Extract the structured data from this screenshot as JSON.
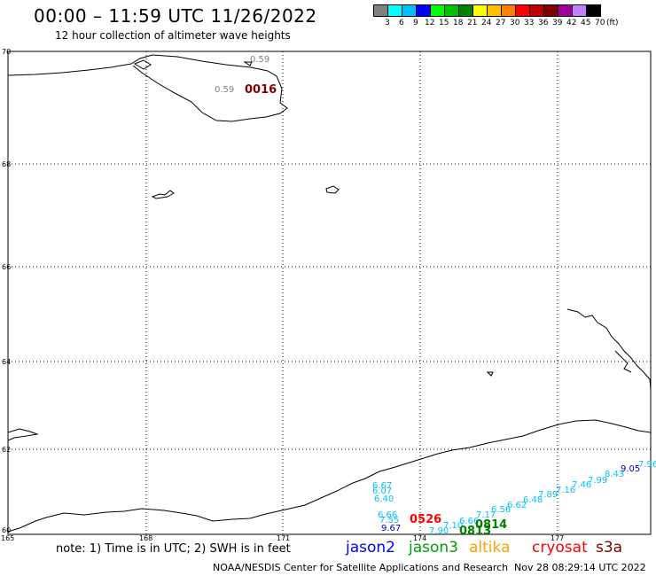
{
  "header": {
    "title": "00:00 – 11:59 UTC 11/26/2022",
    "subtitle": "12 hour collection of altimeter wave heights"
  },
  "color_scale": {
    "values": [
      "3",
      "6",
      "9",
      "12",
      "15",
      "18",
      "21",
      "24",
      "27",
      "30",
      "33",
      "36",
      "39",
      "42",
      "45",
      "70"
    ],
    "unit": "(ft)",
    "colors": [
      "#808080",
      "#00ffff",
      "#00c0ff",
      "#0000ff",
      "#00ff00",
      "#00c000",
      "#008000",
      "#ffff00",
      "#ffc000",
      "#ff8000",
      "#ff0000",
      "#c00000",
      "#800000",
      "#a000a0",
      "#c080ff",
      "#000000"
    ]
  },
  "map": {
    "lat_labels": [
      "70",
      "68",
      "66",
      "64",
      "62",
      "60"
    ],
    "lon_labels": [
      "165",
      "168",
      "171",
      "174",
      "177"
    ],
    "measurements": [
      {
        "text": "0.59",
        "color": "#808080"
      },
      {
        "text": "0.59",
        "color": "#808080"
      },
      {
        "text": "0016",
        "color": "#800000",
        "kind": "time"
      },
      {
        "text": "6.67",
        "color": "#00c0ff"
      },
      {
        "text": "6.07",
        "color": "#00c0ff"
      },
      {
        "text": "6.40",
        "color": "#00c0ff"
      },
      {
        "text": "6.66",
        "color": "#00c0ff"
      },
      {
        "text": "7.55",
        "color": "#00c0ff"
      },
      {
        "text": "9.67",
        "color": "#0000c0"
      },
      {
        "text": "0526",
        "color": "#ff0000",
        "kind": "time"
      },
      {
        "text": "7.90",
        "color": "#00c0ff"
      },
      {
        "text": "7.10",
        "color": "#00c0ff"
      },
      {
        "text": "6.66",
        "color": "#00c0ff"
      },
      {
        "text": "7.17",
        "color": "#00c0ff"
      },
      {
        "text": "0813",
        "color": "#008000",
        "kind": "time"
      },
      {
        "text": "0814",
        "color": "#008000",
        "kind": "time"
      },
      {
        "text": "6.56",
        "color": "#00c0ff"
      },
      {
        "text": "6.62",
        "color": "#00c0ff"
      },
      {
        "text": "6.48",
        "color": "#00c0ff"
      },
      {
        "text": "7.89",
        "color": "#00c0ff"
      },
      {
        "text": "7.16",
        "color": "#00c0ff"
      },
      {
        "text": "7.46",
        "color": "#00c0ff"
      },
      {
        "text": "7.99",
        "color": "#00c0ff"
      },
      {
        "text": "8.43",
        "color": "#00c0ff"
      },
      {
        "text": "9.05",
        "color": "#0000c0"
      },
      {
        "text": "7.96",
        "color": "#00c0ff"
      }
    ]
  },
  "note": "note: 1) Time is in UTC; 2) SWH is in feet",
  "satellites": [
    {
      "name": "jason2",
      "color": "#0000ff"
    },
    {
      "name": "jason3",
      "color": "#00a000"
    },
    {
      "name": "altika",
      "color": "#ffa000"
    },
    {
      "name": "cryosat",
      "color": "#ff0000"
    },
    {
      "name": "s3a",
      "color": "#800000"
    }
  ],
  "footer": {
    "credit": "NOAA/NESDIS Center for Satellite Applications and Research",
    "timestamp": "Nov 28 08:29:14 UTC 2022"
  }
}
